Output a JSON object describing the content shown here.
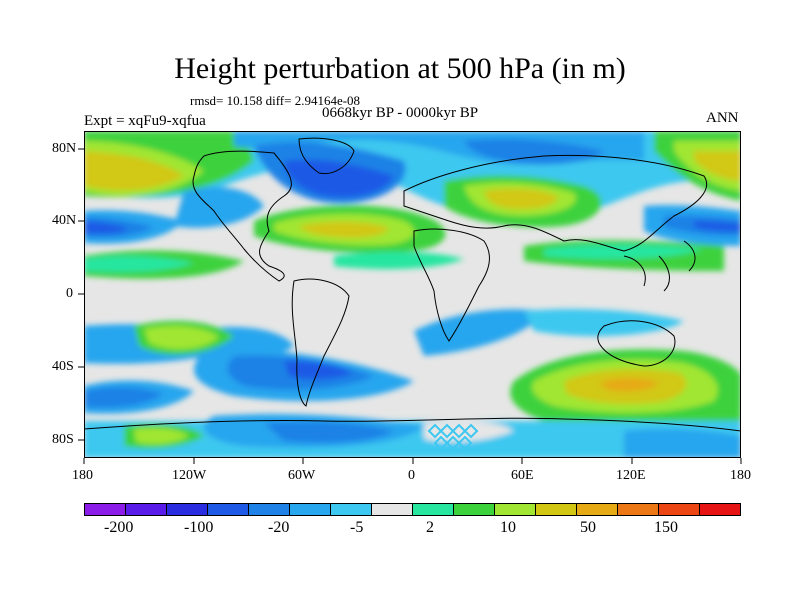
{
  "title": "Height perturbation at 500 hPa (in m)",
  "stats": "rmsd= 10.158 diff= 2.94164e-08",
  "period": "0668kyr BP - 0000kyr BP",
  "experiment": "Expt = xqFu9-xqfua",
  "season": "ANN",
  "y_axis_labels": [
    "80N",
    "40N",
    "0",
    "40S",
    "80S"
  ],
  "x_axis_labels": [
    "180",
    "120W",
    "60W",
    "0",
    "60E",
    "120E",
    "180"
  ],
  "colorbar": {
    "colors": [
      "#8c1ce8",
      "#5a1ce8",
      "#2a2ee0",
      "#1e5ae6",
      "#1e82e6",
      "#28a6ee",
      "#3cc8f0",
      "#e6e6e6",
      "#28e6a0",
      "#3cd23c",
      "#a0e632",
      "#d2c814",
      "#e6aa14",
      "#eb7814",
      "#eb4614",
      "#e61414"
    ],
    "labels": [
      "-200",
      "-100",
      "-20",
      "-5",
      "2",
      "10",
      "50",
      "150"
    ]
  }
}
